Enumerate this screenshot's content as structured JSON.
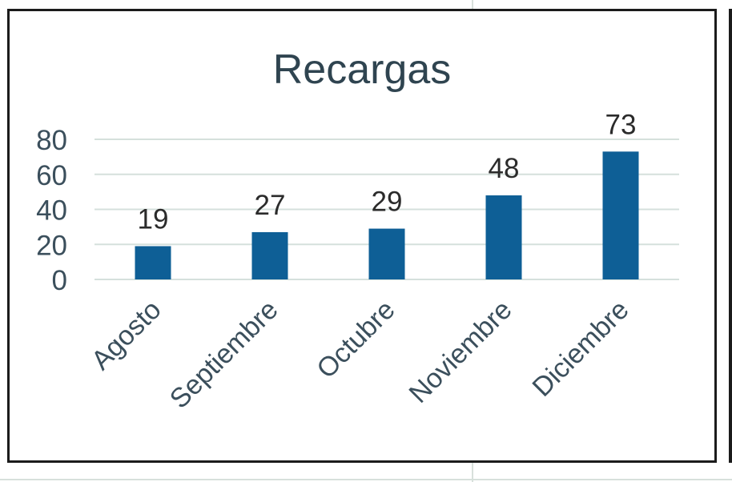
{
  "chart_data": {
    "type": "bar",
    "title": "Recargas",
    "categories": [
      "Agosto",
      "Septiembre",
      "Octubre",
      "Noviembre",
      "Diciembre"
    ],
    "values": [
      19,
      27,
      29,
      48,
      73
    ],
    "data_labels": [
      "19",
      "27",
      "29",
      "48",
      "73"
    ],
    "y_ticks": [
      "0",
      "20",
      "40",
      "60",
      "80"
    ],
    "ylim": [
      0,
      80
    ],
    "grid": true,
    "legend": "none",
    "colors": {
      "bar": "#0e5f96",
      "text": "#3b4f5c",
      "title": "#2f4450",
      "gridline": "#d5e0dc"
    }
  }
}
